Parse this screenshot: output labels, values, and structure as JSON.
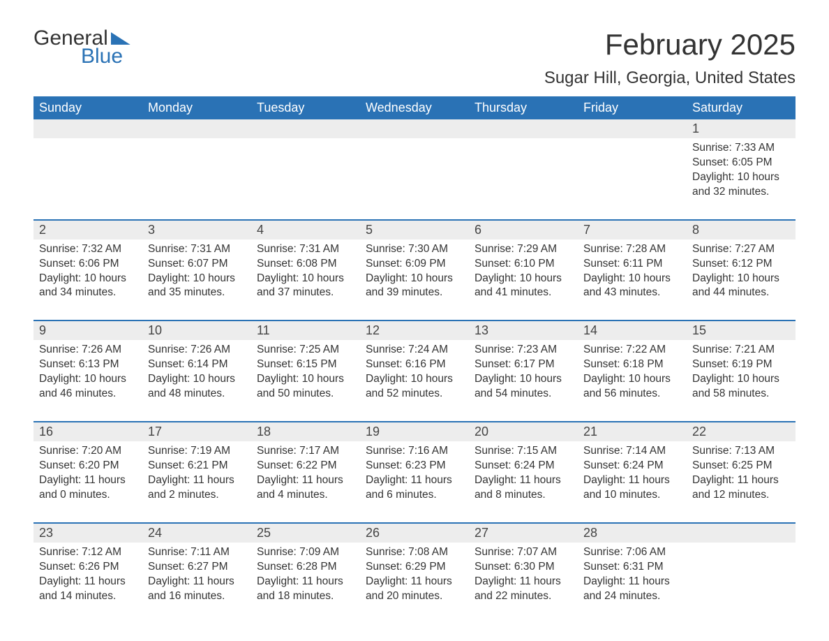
{
  "logo": {
    "general": "General",
    "blue": "Blue"
  },
  "header": {
    "month_title": "February 2025",
    "location": "Sugar Hill, Georgia, United States"
  },
  "colors": {
    "header_bg": "#2a72b5",
    "header_text": "#ffffff",
    "band_bg": "#ededed",
    "border": "#2a72b5",
    "text": "#333333"
  },
  "weekdays": [
    "Sunday",
    "Monday",
    "Tuesday",
    "Wednesday",
    "Thursday",
    "Friday",
    "Saturday"
  ],
  "weeks": [
    [
      null,
      null,
      null,
      null,
      null,
      null,
      {
        "n": "1",
        "sunrise": "Sunrise: 7:33 AM",
        "sunset": "Sunset: 6:05 PM",
        "dl1": "Daylight: 10 hours",
        "dl2": "and 32 minutes."
      }
    ],
    [
      {
        "n": "2",
        "sunrise": "Sunrise: 7:32 AM",
        "sunset": "Sunset: 6:06 PM",
        "dl1": "Daylight: 10 hours",
        "dl2": "and 34 minutes."
      },
      {
        "n": "3",
        "sunrise": "Sunrise: 7:31 AM",
        "sunset": "Sunset: 6:07 PM",
        "dl1": "Daylight: 10 hours",
        "dl2": "and 35 minutes."
      },
      {
        "n": "4",
        "sunrise": "Sunrise: 7:31 AM",
        "sunset": "Sunset: 6:08 PM",
        "dl1": "Daylight: 10 hours",
        "dl2": "and 37 minutes."
      },
      {
        "n": "5",
        "sunrise": "Sunrise: 7:30 AM",
        "sunset": "Sunset: 6:09 PM",
        "dl1": "Daylight: 10 hours",
        "dl2": "and 39 minutes."
      },
      {
        "n": "6",
        "sunrise": "Sunrise: 7:29 AM",
        "sunset": "Sunset: 6:10 PM",
        "dl1": "Daylight: 10 hours",
        "dl2": "and 41 minutes."
      },
      {
        "n": "7",
        "sunrise": "Sunrise: 7:28 AM",
        "sunset": "Sunset: 6:11 PM",
        "dl1": "Daylight: 10 hours",
        "dl2": "and 43 minutes."
      },
      {
        "n": "8",
        "sunrise": "Sunrise: 7:27 AM",
        "sunset": "Sunset: 6:12 PM",
        "dl1": "Daylight: 10 hours",
        "dl2": "and 44 minutes."
      }
    ],
    [
      {
        "n": "9",
        "sunrise": "Sunrise: 7:26 AM",
        "sunset": "Sunset: 6:13 PM",
        "dl1": "Daylight: 10 hours",
        "dl2": "and 46 minutes."
      },
      {
        "n": "10",
        "sunrise": "Sunrise: 7:26 AM",
        "sunset": "Sunset: 6:14 PM",
        "dl1": "Daylight: 10 hours",
        "dl2": "and 48 minutes."
      },
      {
        "n": "11",
        "sunrise": "Sunrise: 7:25 AM",
        "sunset": "Sunset: 6:15 PM",
        "dl1": "Daylight: 10 hours",
        "dl2": "and 50 minutes."
      },
      {
        "n": "12",
        "sunrise": "Sunrise: 7:24 AM",
        "sunset": "Sunset: 6:16 PM",
        "dl1": "Daylight: 10 hours",
        "dl2": "and 52 minutes."
      },
      {
        "n": "13",
        "sunrise": "Sunrise: 7:23 AM",
        "sunset": "Sunset: 6:17 PM",
        "dl1": "Daylight: 10 hours",
        "dl2": "and 54 minutes."
      },
      {
        "n": "14",
        "sunrise": "Sunrise: 7:22 AM",
        "sunset": "Sunset: 6:18 PM",
        "dl1": "Daylight: 10 hours",
        "dl2": "and 56 minutes."
      },
      {
        "n": "15",
        "sunrise": "Sunrise: 7:21 AM",
        "sunset": "Sunset: 6:19 PM",
        "dl1": "Daylight: 10 hours",
        "dl2": "and 58 minutes."
      }
    ],
    [
      {
        "n": "16",
        "sunrise": "Sunrise: 7:20 AM",
        "sunset": "Sunset: 6:20 PM",
        "dl1": "Daylight: 11 hours",
        "dl2": "and 0 minutes."
      },
      {
        "n": "17",
        "sunrise": "Sunrise: 7:19 AM",
        "sunset": "Sunset: 6:21 PM",
        "dl1": "Daylight: 11 hours",
        "dl2": "and 2 minutes."
      },
      {
        "n": "18",
        "sunrise": "Sunrise: 7:17 AM",
        "sunset": "Sunset: 6:22 PM",
        "dl1": "Daylight: 11 hours",
        "dl2": "and 4 minutes."
      },
      {
        "n": "19",
        "sunrise": "Sunrise: 7:16 AM",
        "sunset": "Sunset: 6:23 PM",
        "dl1": "Daylight: 11 hours",
        "dl2": "and 6 minutes."
      },
      {
        "n": "20",
        "sunrise": "Sunrise: 7:15 AM",
        "sunset": "Sunset: 6:24 PM",
        "dl1": "Daylight: 11 hours",
        "dl2": "and 8 minutes."
      },
      {
        "n": "21",
        "sunrise": "Sunrise: 7:14 AM",
        "sunset": "Sunset: 6:24 PM",
        "dl1": "Daylight: 11 hours",
        "dl2": "and 10 minutes."
      },
      {
        "n": "22",
        "sunrise": "Sunrise: 7:13 AM",
        "sunset": "Sunset: 6:25 PM",
        "dl1": "Daylight: 11 hours",
        "dl2": "and 12 minutes."
      }
    ],
    [
      {
        "n": "23",
        "sunrise": "Sunrise: 7:12 AM",
        "sunset": "Sunset: 6:26 PM",
        "dl1": "Daylight: 11 hours",
        "dl2": "and 14 minutes."
      },
      {
        "n": "24",
        "sunrise": "Sunrise: 7:11 AM",
        "sunset": "Sunset: 6:27 PM",
        "dl1": "Daylight: 11 hours",
        "dl2": "and 16 minutes."
      },
      {
        "n": "25",
        "sunrise": "Sunrise: 7:09 AM",
        "sunset": "Sunset: 6:28 PM",
        "dl1": "Daylight: 11 hours",
        "dl2": "and 18 minutes."
      },
      {
        "n": "26",
        "sunrise": "Sunrise: 7:08 AM",
        "sunset": "Sunset: 6:29 PM",
        "dl1": "Daylight: 11 hours",
        "dl2": "and 20 minutes."
      },
      {
        "n": "27",
        "sunrise": "Sunrise: 7:07 AM",
        "sunset": "Sunset: 6:30 PM",
        "dl1": "Daylight: 11 hours",
        "dl2": "and 22 minutes."
      },
      {
        "n": "28",
        "sunrise": "Sunrise: 7:06 AM",
        "sunset": "Sunset: 6:31 PM",
        "dl1": "Daylight: 11 hours",
        "dl2": "and 24 minutes."
      },
      null
    ]
  ]
}
